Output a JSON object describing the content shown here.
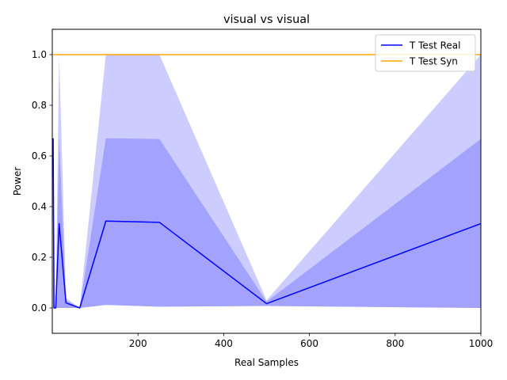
{
  "chart_data": {
    "type": "line",
    "title": "visual vs visual",
    "xlabel": "Real Samples",
    "ylabel": "Power",
    "xlim": [
      0,
      1000
    ],
    "ylim": [
      -0.1,
      1.1
    ],
    "xticks": [
      200,
      400,
      600,
      800,
      1000
    ],
    "yticks": [
      0.0,
      0.2,
      0.4,
      0.6,
      0.8,
      1.0
    ],
    "xtick_labels": [
      "200",
      "400",
      "600",
      "800",
      "1000"
    ],
    "ytick_labels": [
      "0.0",
      "0.2",
      "0.4",
      "0.6",
      "0.8",
      "1.0"
    ],
    "grid": false,
    "legend_position": "top-right",
    "x": [
      2,
      4,
      8,
      16,
      32,
      64,
      125,
      250,
      500,
      1000
    ],
    "series": [
      {
        "name": "T Test Real",
        "color": "#0000ff",
        "values": [
          0.67,
          0.0,
          0.0,
          0.333,
          0.02,
          0.0,
          0.343,
          0.338,
          0.017,
          0.333
        ],
        "bands": [
          {
            "color": "#ccccff",
            "lower": [
              0.0,
              0.0,
              0.0,
              0.0,
              0.0,
              0.0,
              0.012,
              0.005,
              0.008,
              0.0
            ],
            "upper": [
              0.67,
              0.0,
              0.0,
              1.0,
              0.04,
              0.0,
              1.0,
              1.0,
              0.03,
              1.0
            ]
          },
          {
            "color": "#a3a3ff",
            "lower": [
              0.0,
              0.0,
              0.0,
              0.0,
              0.0,
              0.0,
              0.012,
              0.005,
              0.008,
              0.0
            ],
            "upper": [
              0.33,
              0.0,
              0.0,
              0.667,
              0.03,
              0.0,
              0.67,
              0.667,
              0.025,
              0.667
            ]
          }
        ]
      },
      {
        "name": "T Test Syn",
        "color": "#ffa500",
        "values": [
          1.0,
          1.0,
          1.0,
          1.0,
          1.0,
          1.0,
          1.0,
          1.0,
          1.0,
          1.0
        ]
      }
    ]
  }
}
